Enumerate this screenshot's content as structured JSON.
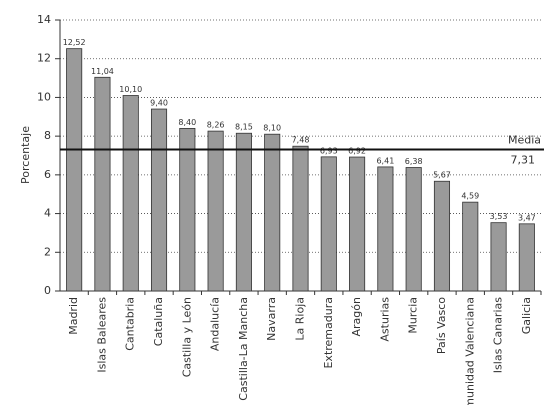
{
  "chart_data": {
    "type": "bar",
    "ylabel": "Porcentaje",
    "categories": [
      "Madrid",
      "Islas Baleares",
      "Cantabria",
      "Cataluña",
      "Castilla y León",
      "Andalucía",
      "Castilla-La Mancha",
      "Navarra",
      "La Rioja",
      "Extremadura",
      "Aragón",
      "Asturias",
      "Murcia",
      "País Vasco",
      "Comunidad Valenciana",
      "Islas Canarias",
      "Galicia"
    ],
    "values": [
      12.52,
      11.04,
      10.1,
      9.4,
      8.4,
      8.26,
      8.15,
      8.1,
      7.48,
      6.93,
      6.92,
      6.41,
      6.38,
      5.67,
      4.59,
      3.53,
      3.47
    ],
    "value_labels": [
      "12,52",
      "11,04",
      "10,10",
      "9,40",
      "8,40",
      "8,26",
      "8,15",
      "8,10",
      "7,48",
      "6,93",
      "6,92",
      "6,41",
      "6,38",
      "5,67",
      "4,59",
      "3,53",
      "3,47"
    ],
    "color": "#9a9a9a",
    "ylim": [
      0,
      14
    ],
    "yticks": [
      0,
      2,
      4,
      6,
      8,
      10,
      12,
      14
    ],
    "grid": true,
    "mean": 7.31,
    "mean_name": "Media",
    "mean_label": "7,31"
  }
}
